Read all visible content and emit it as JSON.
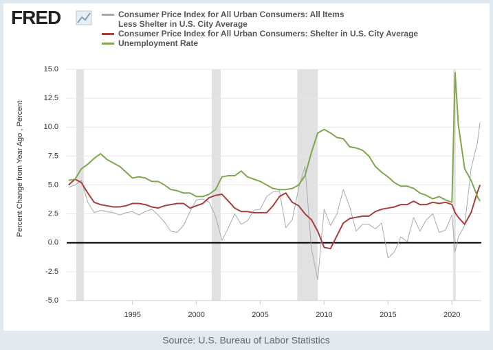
{
  "logo": "FRED",
  "chart_data": {
    "type": "line",
    "source": "Source: U.S. Bureau of Labor Statistics",
    "ylabel": "Percent Change from Year Ago , Percent",
    "xlim": [
      1989.85,
      2022.3
    ],
    "xticks": [
      1995,
      2000,
      2005,
      2010,
      2015,
      2020
    ],
    "ylim": [
      -5,
      15
    ],
    "yticks": [
      {
        "value": -5,
        "label": "-5.0"
      },
      {
        "value": -2.5,
        "label": "-2.5"
      },
      {
        "value": 0,
        "label": "0.0"
      },
      {
        "value": 2.5,
        "label": "2.5"
      },
      {
        "value": 5,
        "label": "5.0"
      },
      {
        "value": 7.5,
        "label": "7.5"
      },
      {
        "value": 10,
        "label": "10.0"
      },
      {
        "value": 12.5,
        "label": "12.5"
      },
      {
        "value": 15,
        "label": "15.0"
      }
    ],
    "grid": true,
    "recessions": [
      [
        1990.6,
        1991.2
      ],
      [
        2001.2,
        2001.9
      ],
      [
        2007.9,
        2009.5
      ],
      [
        2020.1,
        2020.3
      ]
    ],
    "x": [
      1990,
      1990.5,
      1991,
      1991.5,
      1992,
      1992.5,
      1993,
      1993.5,
      1994,
      1994.5,
      1995,
      1995.5,
      1996,
      1996.5,
      1997,
      1997.5,
      1998,
      1998.5,
      1999,
      1999.5,
      2000,
      2000.5,
      2001,
      2001.5,
      2002,
      2002.5,
      2003,
      2003.5,
      2004,
      2004.5,
      2005,
      2005.5,
      2006,
      2006.5,
      2007,
      2007.5,
      2008,
      2008.5,
      2009,
      2009.5,
      2010,
      2010.5,
      2011,
      2011.5,
      2012,
      2012.5,
      2013,
      2013.5,
      2014,
      2014.5,
      2015,
      2015.5,
      2016,
      2016.5,
      2017,
      2017.5,
      2018,
      2018.5,
      2019,
      2019.5,
      2020,
      2020.25,
      2020.5,
      2021,
      2021.5,
      2022,
      2022.2
    ],
    "series": [
      {
        "name": "Consumer Price Index for All Urban Consumers: All Items Less Shelter in U.S. City Average",
        "color": "#a8a8a8",
        "width": 1,
        "values": [
          4.8,
          5.0,
          5.4,
          3.5,
          2.6,
          2.8,
          2.7,
          2.6,
          2.4,
          2.6,
          2.7,
          2.4,
          2.7,
          2.9,
          2.4,
          1.8,
          1.0,
          0.9,
          1.5,
          2.7,
          3.7,
          3.8,
          3.5,
          2.3,
          0.2,
          1.3,
          2.5,
          1.6,
          1.9,
          2.8,
          2.9,
          4.0,
          4.4,
          4.5,
          1.3,
          2.0,
          4.7,
          6.6,
          -0.5,
          -3.2,
          2.9,
          1.5,
          2.5,
          4.6,
          3.1,
          1.0,
          1.6,
          1.6,
          1.2,
          1.7,
          -1.3,
          -0.8,
          0.5,
          0.1,
          2.2,
          1.0,
          2.0,
          2.5,
          0.9,
          1.1,
          2.4,
          -0.8,
          0.5,
          1.5,
          6.4,
          8.7,
          10.4
        ]
      },
      {
        "name": "Consumer Price Index for All Urban Consumers: Shelter in U.S. City Average",
        "color": "#a93c3c",
        "width": 2,
        "values": [
          5.0,
          5.5,
          5.2,
          4.3,
          3.5,
          3.3,
          3.2,
          3.1,
          3.1,
          3.2,
          3.4,
          3.4,
          3.3,
          3.1,
          3.0,
          3.2,
          3.3,
          3.4,
          3.4,
          3.0,
          3.2,
          3.4,
          3.9,
          4.1,
          4.2,
          3.6,
          3.0,
          2.7,
          2.7,
          2.6,
          2.6,
          2.6,
          3.2,
          4.0,
          4.3,
          3.5,
          3.2,
          2.5,
          2.0,
          1.0,
          -0.4,
          -0.5,
          0.6,
          1.7,
          2.1,
          2.2,
          2.3,
          2.3,
          2.7,
          2.9,
          3.0,
          3.1,
          3.3,
          3.3,
          3.6,
          3.3,
          3.3,
          3.5,
          3.4,
          3.5,
          3.3,
          2.6,
          2.2,
          1.6,
          2.6,
          4.4,
          5.0
        ]
      },
      {
        "name": "Unemployment Rate",
        "color": "#7fa64a",
        "width": 2,
        "values": [
          5.4,
          5.5,
          6.4,
          6.8,
          7.3,
          7.7,
          7.2,
          6.9,
          6.6,
          6.1,
          5.6,
          5.7,
          5.6,
          5.3,
          5.3,
          5.0,
          4.6,
          4.5,
          4.3,
          4.3,
          4.0,
          4.0,
          4.2,
          4.6,
          5.7,
          5.8,
          5.8,
          6.2,
          5.7,
          5.5,
          5.3,
          5.0,
          4.7,
          4.6,
          4.6,
          4.7,
          5.0,
          5.8,
          7.8,
          9.5,
          9.8,
          9.5,
          9.1,
          9.0,
          8.3,
          8.2,
          8.0,
          7.5,
          6.6,
          6.1,
          5.7,
          5.2,
          4.9,
          4.9,
          4.7,
          4.3,
          4.1,
          3.8,
          4.0,
          3.7,
          3.5,
          14.7,
          10.2,
          6.4,
          5.4,
          4.0,
          3.6
        ]
      }
    ]
  }
}
